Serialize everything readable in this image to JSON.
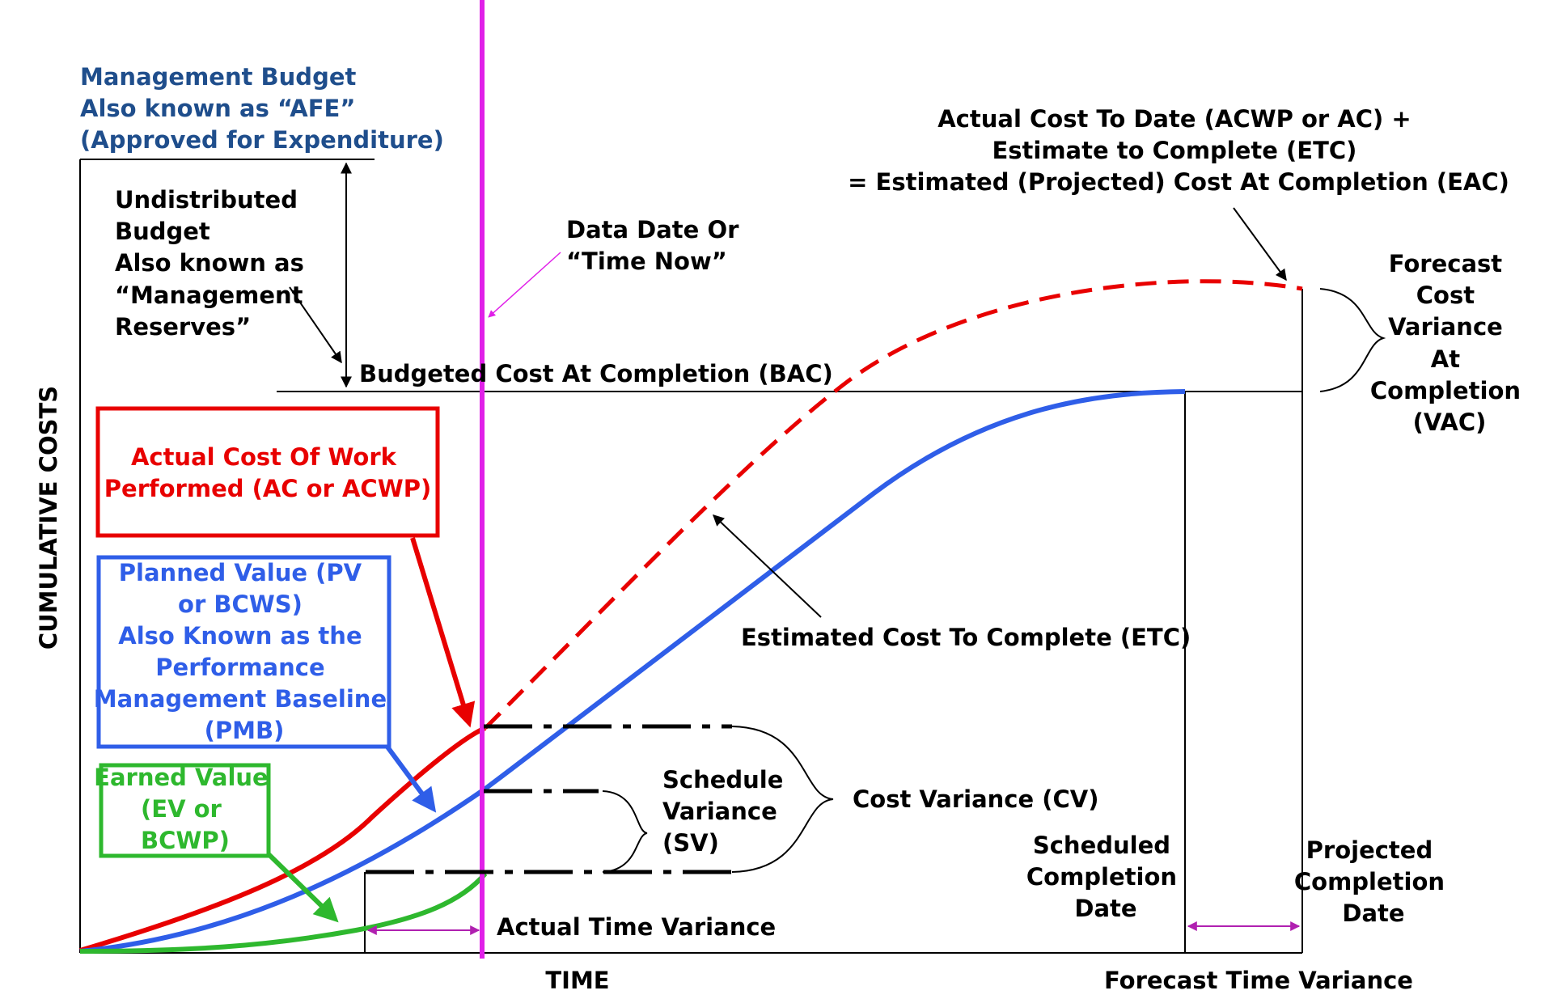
{
  "y_axis_label": "CUMULATIVE COSTS",
  "x_axis_label": "TIME",
  "management_budget": [
    "Management Budget",
    "Also known as “AFE”",
    "(Approved for Expenditure)"
  ],
  "undistributed_budget": [
    "Undistributed",
    "Budget",
    "Also known as",
    "“Management",
    "Reserves”"
  ],
  "data_date": [
    "Data Date Or",
    "“Time Now”"
  ],
  "eac_note": [
    "Actual Cost To Date (ACWP or AC) +",
    "Estimate to Complete (ETC)",
    "= Estimated (Projected) Cost At Completion (EAC)"
  ],
  "vac": [
    "Forecast",
    "Cost",
    "Variance",
    "At",
    "Completion",
    "(VAC)"
  ],
  "bac": "Budgeted Cost At Completion (BAC)",
  "acwp_box": [
    "Actual Cost Of Work",
    "Performed (AC or ACWP)"
  ],
  "pv_box": [
    "Planned Value (PV",
    "or BCWS)",
    "Also Known as the",
    "Performance",
    "Management Baseline",
    "(PMB)"
  ],
  "ev_box": [
    "Earned Value",
    "(EV or",
    "BCWP)"
  ],
  "etc": "Estimated Cost To Complete (ETC)",
  "schedule_variance": [
    "Schedule",
    "Variance",
    "(SV)"
  ],
  "cost_variance": "Cost Variance (CV)",
  "scheduled_completion": [
    "Scheduled",
    "Completion",
    "Date"
  ],
  "projected_completion": [
    "Projected",
    "Completion",
    "Date"
  ],
  "actual_time_variance": "Actual Time Variance",
  "forecast_time_variance": "Forecast Time Variance",
  "colors": {
    "actual_cost": "#e80000",
    "planned_value": "#2f5ee8",
    "earned_value": "#2eb82e",
    "data_date_line": "#e020e8",
    "management_text": "#1f4e8c",
    "time_variance_arrow": "#b020b0"
  }
}
